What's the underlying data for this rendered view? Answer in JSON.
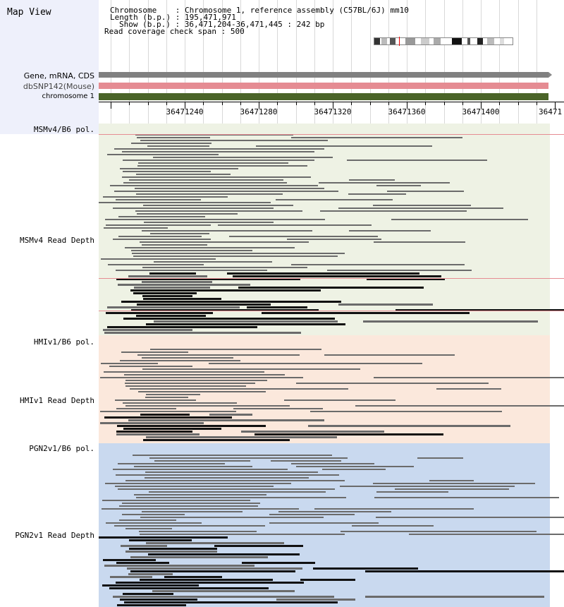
{
  "app": {
    "title": "Map View"
  },
  "info": {
    "chromosome_label": "Chromosome",
    "chromosome_value": "Chromosome 1, reference assembly (C57BL/6J) mm10",
    "length_label": "Length (b.p.)",
    "length_value": "195,471,971",
    "show_label": "Show (b.p.)",
    "show_value": "36,471,204-36,471,445 : 242 bp",
    "coverage_label": "Read coverage check span",
    "coverage_value": "500"
  },
  "tracks": {
    "gene": {
      "label": "Gene, mRNA, CDS",
      "color": "#808080"
    },
    "dbsnp": {
      "label": "dbSNP142(Mouse)",
      "color": "#e58c93"
    },
    "chromosome": {
      "label": "chromosome 1",
      "color": "#4a6428"
    }
  },
  "ruler": {
    "ticks": [
      "36471240",
      "36471280",
      "36471320",
      "36471360",
      "36471400",
      "36471"
    ]
  },
  "panels": [
    {
      "pol_label": "MSMv4/B6 pol.",
      "depth_label": "MSMv4 Read Depth",
      "bg": "#eef2e4"
    },
    {
      "pol_label": "HMIv1/B6 pol.",
      "depth_label": "HMIv1 Read Depth",
      "bg": "#fbe8dc"
    },
    {
      "pol_label": "PGN2v1/B6 pol.",
      "depth_label": "PGN2v1 Read Depth",
      "bg": "#c9d9ef"
    }
  ],
  "colors": {
    "read_light": "#6b6b6b",
    "read_dark": "#111111",
    "sidebar": "#eef0fb",
    "snp": "#e58c93"
  }
}
